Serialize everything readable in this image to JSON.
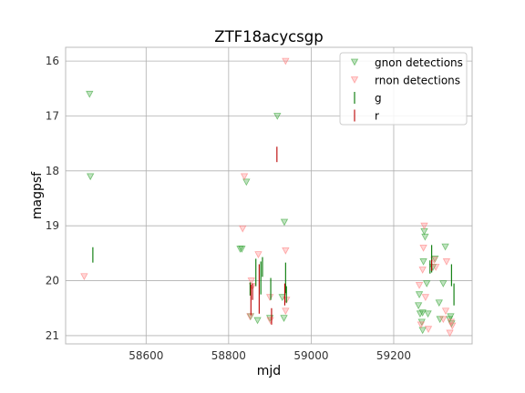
{
  "chart_data": {
    "type": "scatter",
    "title": "ZTF18acycsgp",
    "xlabel": "mjd",
    "ylabel": "magpsf",
    "xlim": [
      58405,
      59390
    ],
    "ylim": [
      21.15,
      15.75
    ],
    "y_inverted": true,
    "grid": true,
    "legend_position": "top-right",
    "x_ticks": [
      58600,
      58800,
      59000,
      59200
    ],
    "y_ticks": [
      16,
      17,
      18,
      19,
      20,
      21
    ],
    "series": [
      {
        "name": "gnon detections",
        "kind": "triangle-down",
        "color": "#2ca02c",
        "points": [
          [
            58463,
            16.6
          ],
          [
            58465,
            18.1
          ],
          [
            58828,
            19.42
          ],
          [
            58832,
            19.42
          ],
          [
            58843,
            18.2
          ],
          [
            58918,
            17.0
          ],
          [
            58935,
            18.93
          ],
          [
            58853,
            20.65
          ],
          [
            58870,
            20.72
          ],
          [
            58900,
            20.68
          ],
          [
            58934,
            20.68
          ],
          [
            58930,
            20.3
          ],
          [
            59260,
            20.45
          ],
          [
            59262,
            20.25
          ],
          [
            59264,
            20.6
          ],
          [
            59268,
            20.75
          ],
          [
            59270,
            20.58
          ],
          [
            59272,
            19.65
          ],
          [
            59274,
            19.1
          ],
          [
            59276,
            19.2
          ],
          [
            59280,
            20.05
          ],
          [
            59283,
            20.6
          ],
          [
            59295,
            19.75
          ],
          [
            59300,
            19.6
          ],
          [
            59310,
            20.4
          ],
          [
            59312,
            20.7
          ],
          [
            59320,
            20.05
          ],
          [
            59325,
            19.38
          ],
          [
            59335,
            20.7
          ],
          [
            59338,
            20.65
          ],
          [
            59340,
            20.78
          ],
          [
            59270,
            20.9
          ]
        ]
      },
      {
        "name": "rnon detections",
        "kind": "triangle-down",
        "color": "#ff7777",
        "points": [
          [
            58450,
            19.92
          ],
          [
            58834,
            19.05
          ],
          [
            58838,
            18.1
          ],
          [
            58855,
            20.0
          ],
          [
            58858,
            20.1
          ],
          [
            58872,
            19.52
          ],
          [
            58900,
            20.3
          ],
          [
            58938,
            19.45
          ],
          [
            58940,
            20.35
          ],
          [
            58938,
            20.55
          ],
          [
            58938,
            16.0
          ],
          [
            59262,
            20.08
          ],
          [
            59266,
            20.8
          ],
          [
            59270,
            19.8
          ],
          [
            59272,
            19.4
          ],
          [
            59274,
            19.0
          ],
          [
            59277,
            20.3
          ],
          [
            59284,
            20.88
          ],
          [
            59298,
            19.62
          ],
          [
            59302,
            19.75
          ],
          [
            59320,
            20.7
          ],
          [
            59326,
            20.55
          ],
          [
            59328,
            19.65
          ],
          [
            59336,
            20.95
          ],
          [
            59339,
            20.75
          ],
          [
            59342,
            20.82
          ],
          [
            58901,
            20.72
          ],
          [
            58852,
            20.65
          ]
        ]
      },
      {
        "name": "g",
        "kind": "errorbar",
        "color": "#007700",
        "points": [
          [
            58471,
            19.53,
            0.14
          ],
          [
            58852,
            20.15,
            0.12
          ],
          [
            58866,
            19.85,
            0.25
          ],
          [
            58878,
            19.95,
            0.3
          ],
          [
            58882,
            19.75,
            0.18
          ],
          [
            58902,
            20.15,
            0.2
          ],
          [
            58938,
            19.95,
            0.28
          ],
          [
            58940,
            20.25,
            0.15
          ],
          [
            59288,
            19.75,
            0.12
          ],
          [
            59292,
            19.6,
            0.25
          ],
          [
            59340,
            19.9,
            0.2
          ],
          [
            59346,
            20.25,
            0.2
          ]
        ]
      },
      {
        "name": "r",
        "kind": "errorbar",
        "color": "#bb0000",
        "points": [
          [
            58854,
            20.35,
            0.28
          ],
          [
            58858,
            20.2,
            0.15
          ],
          [
            58874,
            20.15,
            0.45
          ],
          [
            58904,
            20.65,
            0.15
          ],
          [
            58917,
            17.7,
            0.14
          ],
          [
            58936,
            20.25,
            0.2
          ],
          [
            59292,
            19.72,
            0.1
          ]
        ]
      }
    ]
  }
}
